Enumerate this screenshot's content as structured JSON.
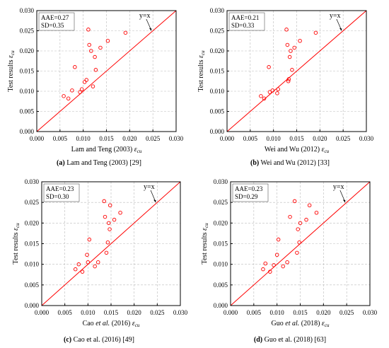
{
  "chart_data": [
    {
      "type": "scatter",
      "panel": "a",
      "xlabel": "Lam and Teng (2003) εcu",
      "xlabel_parts": [
        {
          "t": "Lam and Teng (2003) ",
          "i": false
        },
        {
          "t": "ε",
          "i": true
        },
        {
          "t": "cu",
          "i": true,
          "sub": true
        }
      ],
      "ylabel": "Test results εcu",
      "xlim": [
        0,
        0.03
      ],
      "ylim": [
        0,
        0.03
      ],
      "xticks": [
        "0.000",
        "0.005",
        "0.010",
        "0.015",
        "0.020",
        "0.025",
        "0.030"
      ],
      "yticks": [
        "0.000",
        "0.005",
        "0.010",
        "0.015",
        "0.020",
        "0.025",
        "0.030"
      ],
      "stats": [
        "AAE=0.27",
        "SD=0.35"
      ],
      "reference_line": "y=x",
      "caption_parts": [
        {
          "t": "(a)",
          "b": true
        },
        {
          "t": " Lam and Teng (2003) [29]"
        }
      ],
      "points": [
        [
          0.0058,
          0.0088
        ],
        [
          0.0068,
          0.0082
        ],
        [
          0.0076,
          0.0102
        ],
        [
          0.0082,
          0.016
        ],
        [
          0.0093,
          0.0098
        ],
        [
          0.0097,
          0.0105
        ],
        [
          0.0103,
          0.0123
        ],
        [
          0.0107,
          0.0128
        ],
        [
          0.0111,
          0.0253
        ],
        [
          0.0113,
          0.0215
        ],
        [
          0.0117,
          0.02
        ],
        [
          0.0121,
          0.0112
        ],
        [
          0.0125,
          0.0185
        ],
        [
          0.0127,
          0.0153
        ],
        [
          0.0137,
          0.0208
        ],
        [
          0.0153,
          0.0225
        ],
        [
          0.0191,
          0.0245
        ]
      ]
    },
    {
      "type": "scatter",
      "panel": "b",
      "xlabel": "Wei and Wu (2012) εcu",
      "xlabel_parts": [
        {
          "t": "Wei and Wu (2012) ",
          "i": false
        },
        {
          "t": "ε",
          "i": true
        },
        {
          "t": "cu",
          "i": true,
          "sub": true
        }
      ],
      "ylabel": "Test results εcu",
      "xlim": [
        0,
        0.03
      ],
      "ylim": [
        0,
        0.03
      ],
      "xticks": [
        "0.000",
        "0.005",
        "0.010",
        "0.015",
        "0.020",
        "0.025",
        "0.030"
      ],
      "yticks": [
        "0.000",
        "0.005",
        "0.010",
        "0.015",
        "0.020",
        "0.025",
        "0.030"
      ],
      "stats": [
        "AAE=0.21",
        "SD=0.33"
      ],
      "reference_line": "y=x",
      "caption_parts": [
        {
          "t": "(b)",
          "b": true
        },
        {
          "t": " Wei and Wu (2012) [33]"
        }
      ],
      "points": [
        [
          0.0073,
          0.0088
        ],
        [
          0.008,
          0.0082
        ],
        [
          0.009,
          0.016
        ],
        [
          0.0092,
          0.0098
        ],
        [
          0.0098,
          0.0102
        ],
        [
          0.0108,
          0.0095
        ],
        [
          0.011,
          0.0105
        ],
        [
          0.0128,
          0.0253
        ],
        [
          0.013,
          0.0215
        ],
        [
          0.0132,
          0.0125
        ],
        [
          0.0133,
          0.013
        ],
        [
          0.0135,
          0.0185
        ],
        [
          0.0137,
          0.02
        ],
        [
          0.014,
          0.0153
        ],
        [
          0.0145,
          0.0208
        ],
        [
          0.0157,
          0.0225
        ],
        [
          0.0191,
          0.0245
        ]
      ]
    },
    {
      "type": "scatter",
      "panel": "c",
      "xlabel": "Cao et al. (2016) εcu",
      "xlabel_parts": [
        {
          "t": "Cao ",
          "i": false
        },
        {
          "t": "et al.",
          "i": true
        },
        {
          "t": " (2016) ",
          "i": false
        },
        {
          "t": "ε",
          "i": true
        },
        {
          "t": "cu",
          "i": true,
          "sub": true
        }
      ],
      "ylabel": "Test results εcu",
      "xlim": [
        0,
        0.03
      ],
      "ylim": [
        0,
        0.03
      ],
      "xticks": [
        "0.000",
        "0.005",
        "0.010",
        "0.015",
        "0.020",
        "0.025",
        "0.030"
      ],
      "yticks": [
        "0.000",
        "0.005",
        "0.010",
        "0.015",
        "0.020",
        "0.025",
        "0.030"
      ],
      "stats": [
        "AAE=0.23",
        "SD=0.30"
      ],
      "reference_line": "y=x",
      "caption_parts": [
        {
          "t": "(c)",
          "b": true
        },
        {
          "t": " Cao et al. (2016) [49]"
        }
      ],
      "points": [
        [
          0.0073,
          0.0088
        ],
        [
          0.008,
          0.01
        ],
        [
          0.0088,
          0.0082
        ],
        [
          0.0098,
          0.0123
        ],
        [
          0.01,
          0.0105
        ],
        [
          0.0103,
          0.016
        ],
        [
          0.0115,
          0.0095
        ],
        [
          0.0122,
          0.0105
        ],
        [
          0.0135,
          0.0253
        ],
        [
          0.0137,
          0.0215
        ],
        [
          0.014,
          0.0128
        ],
        [
          0.0143,
          0.0153
        ],
        [
          0.0145,
          0.02
        ],
        [
          0.0147,
          0.0185
        ],
        [
          0.0148,
          0.0243
        ],
        [
          0.0157,
          0.0208
        ],
        [
          0.017,
          0.0225
        ]
      ]
    },
    {
      "type": "scatter",
      "panel": "d",
      "xlabel": "Guo et al. (2018) εcu",
      "xlabel_parts": [
        {
          "t": "Guo ",
          "i": false
        },
        {
          "t": "et al.",
          "i": true
        },
        {
          "t": " (2018) ",
          "i": false
        },
        {
          "t": "ε",
          "i": true
        },
        {
          "t": "cu",
          "i": true,
          "sub": true
        }
      ],
      "ylabel": "Test results εcu",
      "xlim": [
        0,
        0.03
      ],
      "ylim": [
        0,
        0.03
      ],
      "xticks": [
        "0.000",
        "0.005",
        "0.010",
        "0.015",
        "0.020",
        "0.025",
        "0.030"
      ],
      "yticks": [
        "0.000",
        "0.005",
        "0.010",
        "0.015",
        "0.020",
        "0.025",
        "0.030"
      ],
      "stats": [
        "AAE=0.23",
        "SD=0.29"
      ],
      "reference_line": "y=x",
      "caption_parts": [
        {
          "t": "(d)",
          "b": true
        },
        {
          "t": " Guo et al. (2018) [63]"
        }
      ],
      "points": [
        [
          0.007,
          0.0088
        ],
        [
          0.0075,
          0.0102
        ],
        [
          0.0085,
          0.0082
        ],
        [
          0.0093,
          0.0098
        ],
        [
          0.01,
          0.0123
        ],
        [
          0.0103,
          0.016
        ],
        [
          0.0113,
          0.0095
        ],
        [
          0.0122,
          0.0105
        ],
        [
          0.0128,
          0.0215
        ],
        [
          0.0138,
          0.0253
        ],
        [
          0.0143,
          0.0128
        ],
        [
          0.0145,
          0.0185
        ],
        [
          0.0148,
          0.0153
        ],
        [
          0.015,
          0.02
        ],
        [
          0.0163,
          0.0208
        ],
        [
          0.017,
          0.0243
        ],
        [
          0.0185,
          0.0225
        ]
      ]
    }
  ],
  "style": {
    "marker_color": "#ff0000",
    "line_color": "#ff0000",
    "axis_color": "#000000",
    "grid_color": "#bbbbbb"
  }
}
